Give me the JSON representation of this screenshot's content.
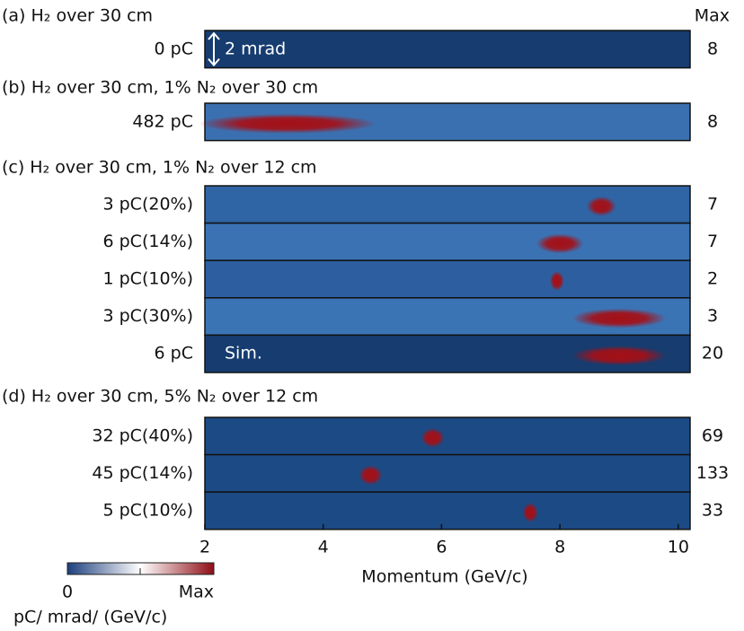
{
  "chart_data": {
    "type": "spectra",
    "xlabel": "Momentum (GeV/c)",
    "xlim": [
      2,
      10.2
    ],
    "xticks": [
      2,
      4,
      6,
      8,
      10
    ],
    "max_header": "Max",
    "spot_color": "#a50f15",
    "panels": [
      {
        "title": "(a) H₂ over 30 cm",
        "rows": [
          {
            "label": "0 pC",
            "max": 8,
            "color": "#163c70",
            "annotation": "2 mrad",
            "spots": []
          }
        ]
      },
      {
        "title": "(b) H₂ over 30 cm, 1% N₂ over 30 cm",
        "rows": [
          {
            "label": "482 pC",
            "max": 8,
            "color": "#3b70b0",
            "spots": [
              {
                "x": 3.4,
                "w": 1.5
              }
            ]
          }
        ]
      },
      {
        "title": "(c) H₂ over 30 cm, 1% N₂ over 12 cm",
        "rows": [
          {
            "label": "3 pC(20%)",
            "max": 7,
            "color": "#2f64a5",
            "spots": [
              {
                "x": 8.7,
                "w": 0.25
              }
            ]
          },
          {
            "label": "6 pC(14%)",
            "max": 7,
            "color": "#3a72b3",
            "spots": [
              {
                "x": 8.0,
                "w": 0.4
              }
            ]
          },
          {
            "label": "1 pC(10%)",
            "max": 2,
            "color": "#2d5fa0",
            "spots": [
              {
                "x": 7.95,
                "w": 0.12
              }
            ]
          },
          {
            "label": "3 pC(30%)",
            "max": 3,
            "color": "#3b74b5",
            "spots": [
              {
                "x": 9.0,
                "w": 0.8
              }
            ]
          },
          {
            "label": "6 pC",
            "max": 20,
            "color": "#163c70",
            "annotation": "Sim.",
            "spots": [
              {
                "x": 9.0,
                "w": 0.8
              }
            ]
          }
        ]
      },
      {
        "title": "(d) H₂ over 30 cm, 5% N₂ over 12 cm",
        "rows": [
          {
            "label": "32 pC(40%)",
            "max": 69,
            "color": "#1c4a85",
            "spots": [
              {
                "x": 5.85,
                "w": 0.2
              }
            ]
          },
          {
            "label": "45 pC(14%)",
            "max": 133,
            "color": "#1c4a85",
            "spots": [
              {
                "x": 4.8,
                "w": 0.2
              }
            ]
          },
          {
            "label": "5 pC(10%)",
            "max": 33,
            "color": "#1c4a85",
            "spots": [
              {
                "x": 7.5,
                "w": 0.13
              }
            ]
          }
        ]
      }
    ],
    "colorbar": {
      "min_label": "0",
      "max_label": "Max",
      "label": "pC/ mrad/ (GeV/c)",
      "colors": [
        "#1d3f7c",
        "#ffffff",
        "#8f0e16"
      ]
    }
  }
}
